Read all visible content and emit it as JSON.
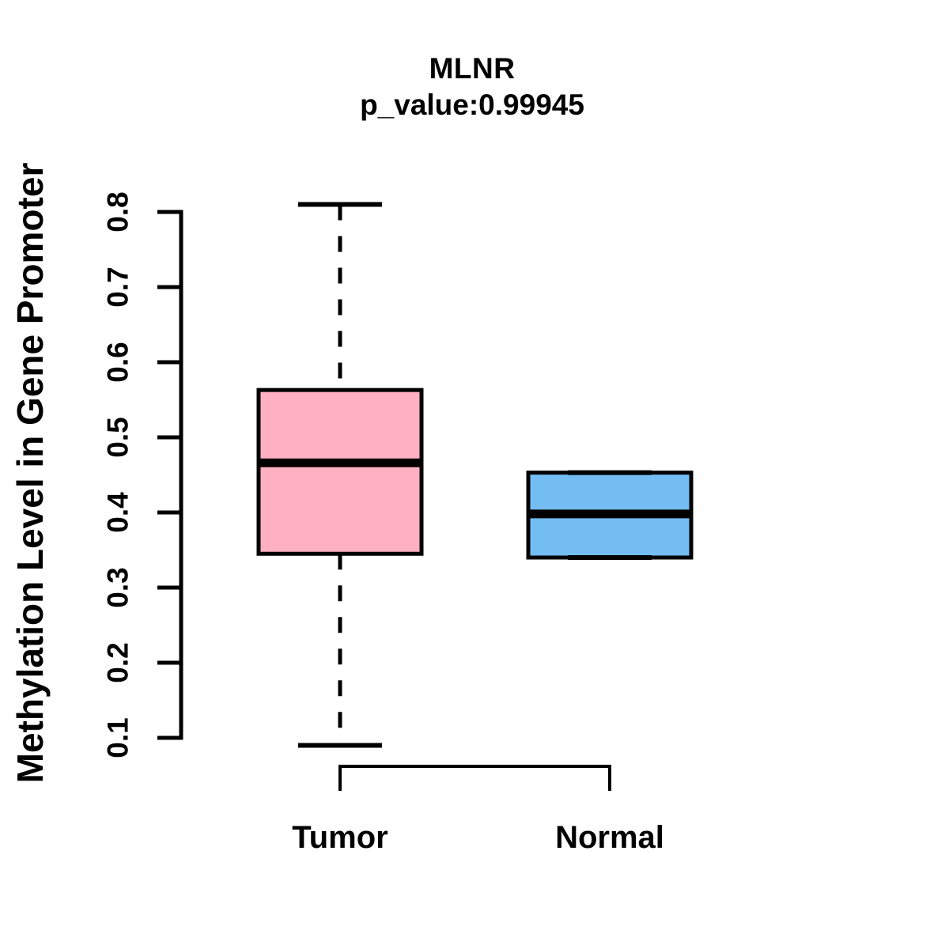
{
  "chart_data": {
    "type": "boxplot",
    "title": "MLNR",
    "subtitle": "p_value:0.99945",
    "ylabel": "Methylation Level in Gene Promoter",
    "xlabel": "",
    "categories": [
      "Tumor",
      "Normal"
    ],
    "ylim": [
      0.1,
      0.8
    ],
    "yticks": [
      0.8,
      0.7,
      0.6,
      0.5,
      0.4,
      0.3,
      0.2,
      0.1
    ],
    "grid": false,
    "legend": "none",
    "series": [
      {
        "name": "Tumor",
        "color": "#FFB1C3",
        "whisker_low": 0.09,
        "q1": 0.345,
        "median": 0.466,
        "q3": 0.563,
        "whisker_high": 0.81
      },
      {
        "name": "Normal",
        "color": "#74BDF2",
        "whisker_low": 0.34,
        "q1": 0.34,
        "median": 0.398,
        "q3": 0.453,
        "whisker_high": 0.453
      }
    ],
    "colors": {
      "box_border": "#000000",
      "median": "#000000",
      "axis": "#000000",
      "text": "#000000",
      "background": "#FFFFFF"
    }
  }
}
